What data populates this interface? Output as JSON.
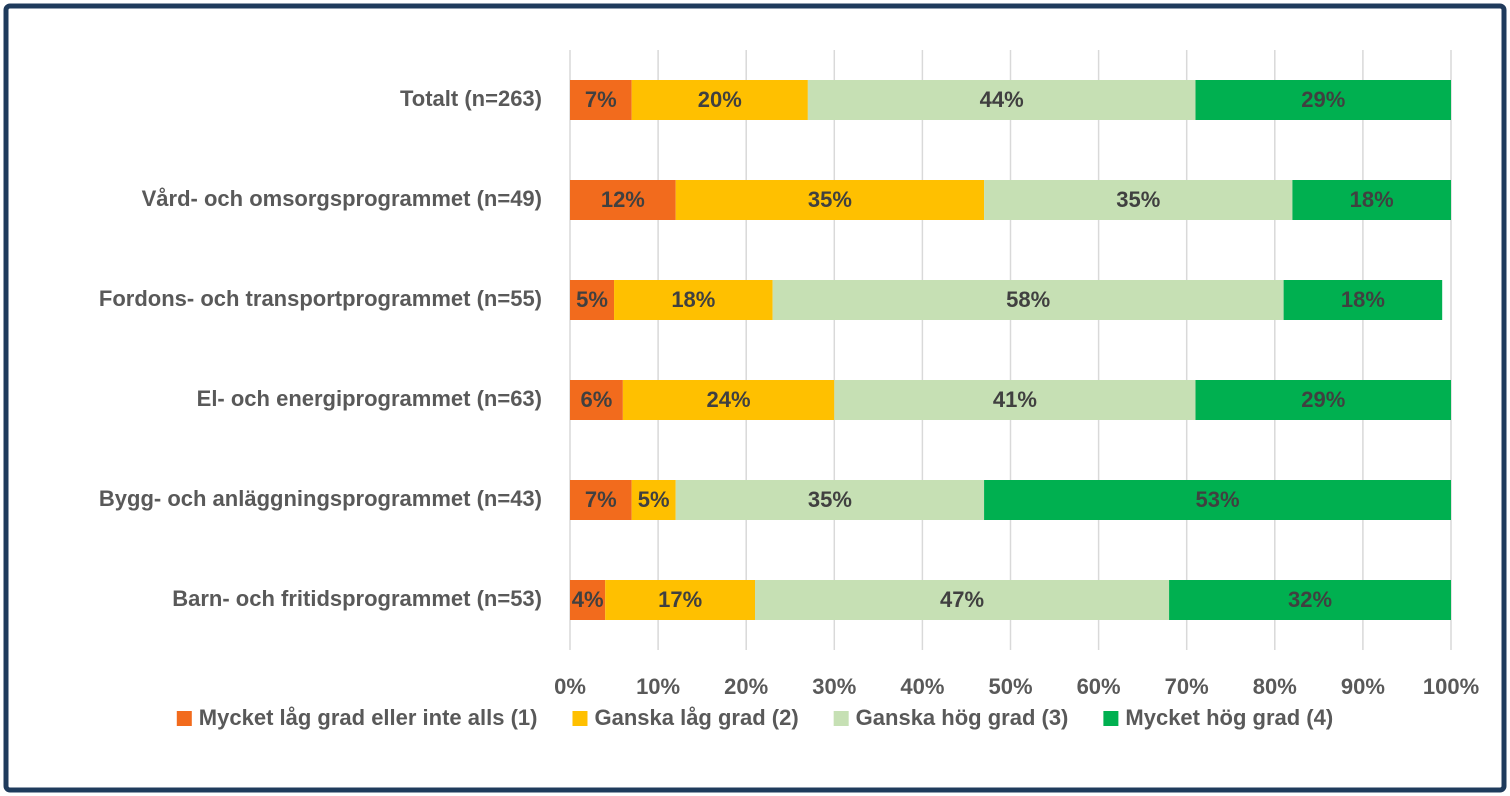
{
  "chart_data": {
    "type": "stacked-barh",
    "categories": [
      "Totalt (n=263)",
      "Vård- och omsorgsprogrammet (n=49)",
      "Fordons- och transportprogrammet (n=55)",
      "El- och energiprogrammet (n=63)",
      "Bygg- och anläggningsprogrammet (n=43)",
      "Barn- och fritidsprogrammet (n=53)"
    ],
    "series": [
      {
        "name": "Mycket låg grad eller inte alls (1)",
        "color": "#f26b1d",
        "values": [
          7,
          12,
          5,
          6,
          7,
          4
        ],
        "value_labels": [
          "7%",
          "12%",
          "5%",
          "6%",
          "7%",
          "4%"
        ]
      },
      {
        "name": "Ganska låg grad (2)",
        "color": "#ffc000",
        "values": [
          20,
          35,
          18,
          24,
          5,
          17
        ],
        "value_labels": [
          "20%",
          "35%",
          "18%",
          "24%",
          "5%",
          "17%"
        ]
      },
      {
        "name": "Ganska hög grad (3)",
        "color": "#c6e0b4",
        "values": [
          44,
          35,
          58,
          41,
          35,
          47
        ],
        "value_labels": [
          "44%",
          "35%",
          "58%",
          "41%",
          "35%",
          "47%"
        ]
      },
      {
        "name": "Mycket hög grad (4)",
        "color": "#00b050",
        "values": [
          29,
          18,
          18,
          29,
          53,
          32
        ],
        "value_labels": [
          "29%",
          "18%",
          "18%",
          "29%",
          "53%",
          "32%"
        ]
      }
    ],
    "xlim": [
      0,
      100
    ],
    "xticks": [
      {
        "value": 0,
        "label": "0%"
      },
      {
        "value": 10,
        "label": "10%"
      },
      {
        "value": 20,
        "label": "20%"
      },
      {
        "value": 30,
        "label": "30%"
      },
      {
        "value": 40,
        "label": "40%"
      },
      {
        "value": 50,
        "label": "50%"
      },
      {
        "value": 60,
        "label": "60%"
      },
      {
        "value": 70,
        "label": "70%"
      },
      {
        "value": 80,
        "label": "80%"
      },
      {
        "value": 90,
        "label": "90%"
      },
      {
        "value": 100,
        "label": "100%"
      }
    ],
    "grid": true,
    "legend": "bottom"
  }
}
